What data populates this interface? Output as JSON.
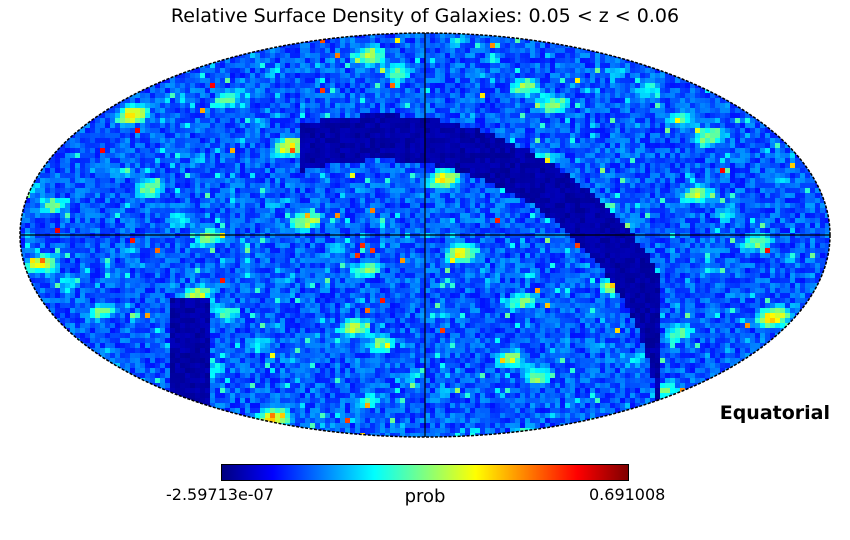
{
  "title": "Relative Surface Density of Galaxies: 0.05 < z < 0.06",
  "coord_system": "Equatorial",
  "colorbar": {
    "label": "prob",
    "min_label": "-2.59713e-07",
    "max_label": "0.691008",
    "colormap": [
      "#00007f",
      "#0000ff",
      "#0080ff",
      "#00ffff",
      "#80ff80",
      "#ffff00",
      "#ff8000",
      "#ff0000",
      "#7f0000"
    ]
  },
  "chart_data": {
    "type": "heatmap",
    "projection": "mollweide",
    "title": "Relative Surface Density of Galaxies: 0.05 < z < 0.06",
    "value_label": "prob",
    "value_range": [
      -2.59713e-07,
      0.691008
    ],
    "graticule": "equator and central meridian",
    "masked_region": "galactic plane (zone of avoidance) band, value ~0",
    "colormap": "jet"
  }
}
